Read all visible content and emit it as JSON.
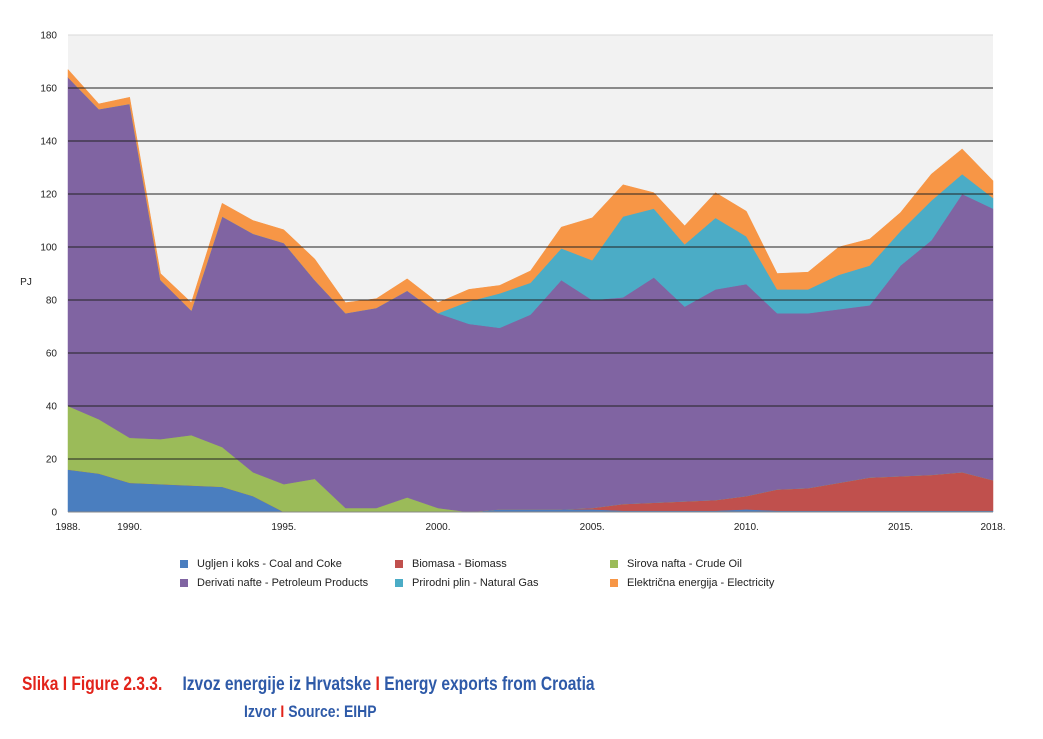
{
  "chart_data": {
    "type": "area",
    "stacked": true,
    "title": "",
    "ylabel": "PJ",
    "xlabel": "",
    "ylim": [
      0,
      180
    ],
    "yticks": [
      0,
      20,
      40,
      60,
      80,
      100,
      120,
      140,
      160,
      180
    ],
    "xlim": [
      1988,
      2018
    ],
    "xtick_labels": [
      {
        "year": 1988,
        "label": "1988."
      },
      {
        "year": 1990,
        "label": "1990."
      },
      {
        "year": 1995,
        "label": "1995."
      },
      {
        "year": 2000,
        "label": "2000."
      },
      {
        "year": 2005,
        "label": "2005."
      },
      {
        "year": 2010,
        "label": "2010."
      },
      {
        "year": 2015,
        "label": "2015."
      },
      {
        "year": 2018,
        "label": "2018."
      }
    ],
    "grid": "horizontal",
    "legend_position": "bottom",
    "x": [
      1988,
      1989,
      1990,
      1991,
      1992,
      1993,
      1994,
      1995,
      1996,
      1997,
      1998,
      1999,
      2000,
      2001,
      2002,
      2003,
      2004,
      2005,
      2006,
      2007,
      2008,
      2009,
      2010,
      2011,
      2012,
      2013,
      2014,
      2015,
      2016,
      2017,
      2018
    ],
    "series": [
      {
        "name": "Ugljen i koks - Coal and Coke",
        "color": "#4a7ebf",
        "values": [
          16,
          14.5,
          11,
          10.5,
          10,
          9.5,
          6,
          0,
          0,
          0,
          0,
          0,
          0,
          0,
          1,
          1,
          1,
          1,
          0.5,
          0.5,
          0.5,
          0.5,
          1,
          0.5,
          0.5,
          0.5,
          0.5,
          0.5,
          0.5,
          0.5,
          0.5
        ]
      },
      {
        "name": "Biomasa - Biomass",
        "color": "#c0504d",
        "values": [
          0,
          0,
          0,
          0,
          0,
          0,
          0,
          0,
          0,
          0,
          0,
          0,
          0,
          0,
          0,
          0,
          0,
          0.5,
          2.5,
          3,
          3.5,
          4,
          5,
          8,
          8.5,
          10.5,
          12.5,
          13,
          13.5,
          14.5,
          11.5
        ]
      },
      {
        "name": "Sirova nafta - Crude Oil",
        "color": "#9bbb59",
        "values": [
          24,
          20.5,
          17,
          17,
          19,
          15,
          9,
          10.5,
          12.5,
          1.5,
          1.5,
          5.5,
          1.5,
          0,
          0,
          0,
          0,
          0,
          0,
          0,
          0,
          0,
          0,
          0,
          0,
          0,
          0,
          0,
          0,
          0,
          0
        ]
      },
      {
        "name": "Derivati nafte - Petroleum Products",
        "color": "#8064a2",
        "values": [
          124,
          117,
          126,
          60,
          47,
          87,
          90,
          91,
          75,
          73.5,
          75.5,
          78,
          73.5,
          71,
          68.5,
          73.5,
          86.5,
          78.5,
          78,
          85,
          73.5,
          79.5,
          80,
          66.5,
          66,
          65.5,
          65,
          79.5,
          88.5,
          105,
          102.5
        ]
      },
      {
        "name": "Prirodni plin - Natural Gas",
        "color": "#4bacc6",
        "values": [
          0,
          0,
          0,
          0,
          0,
          0,
          0,
          0,
          0,
          0,
          0,
          0,
          0,
          8.5,
          13,
          12,
          12,
          15,
          30.5,
          26,
          23.5,
          27,
          18,
          9,
          9,
          13,
          15,
          13,
          15,
          7.5,
          4
        ]
      },
      {
        "name": "Električna energija - Electricity",
        "color": "#f79646",
        "values": [
          3,
          2,
          2.5,
          2.5,
          3,
          5,
          5,
          5,
          8,
          4,
          3.5,
          4.5,
          4,
          4.5,
          3,
          4.5,
          8,
          16,
          12,
          6,
          7,
          9.5,
          9.5,
          6,
          6.5,
          10.5,
          10,
          7,
          10,
          9.5,
          6.5
        ]
      }
    ]
  },
  "caption": {
    "slika": "Slika",
    "sep1": "I",
    "figure_no": "Figure 2.3.3.",
    "title_hr": "Izvoz energije iz Hrvatske",
    "sep2": "I",
    "title_en": "Energy exports from Croatia",
    "source_hr": "Izvor",
    "sep3": "I",
    "source_en": "Source: EIHP"
  }
}
